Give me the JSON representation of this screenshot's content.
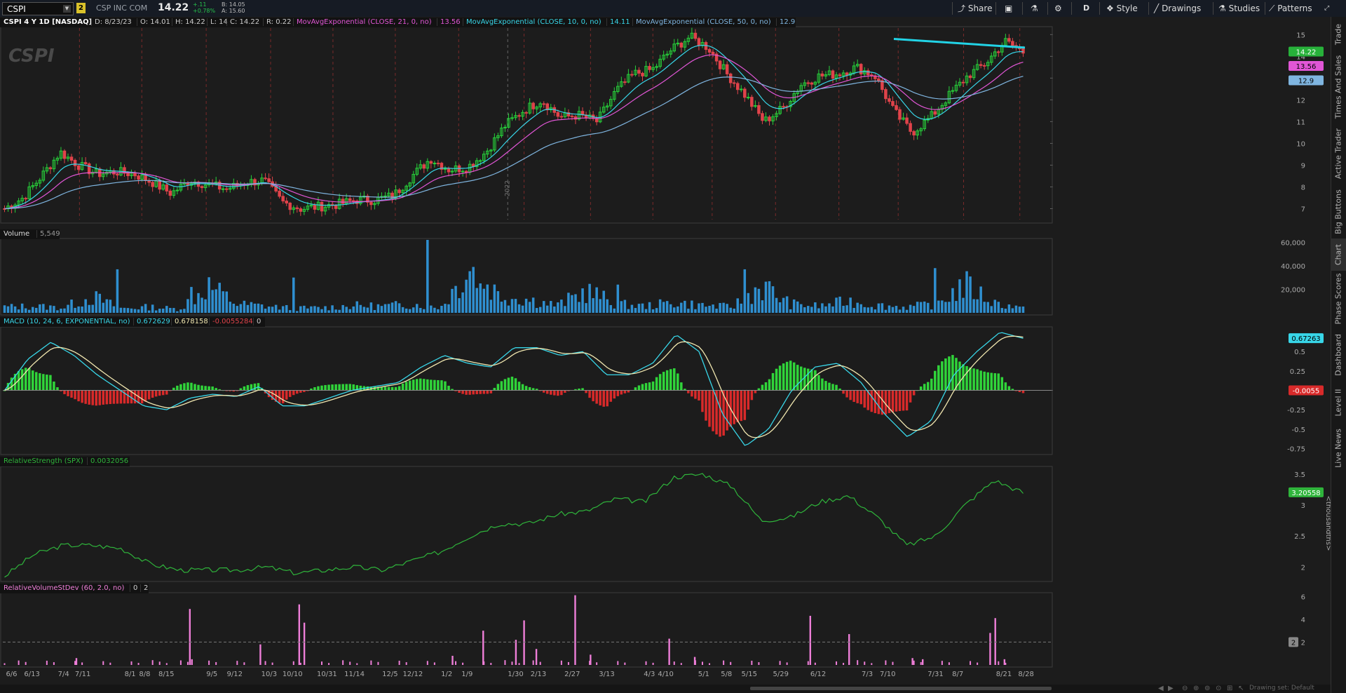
{
  "header": {
    "symbol": "CSPI",
    "link_badge": "2",
    "company": "CSP INC COM",
    "last": "14.22",
    "change_abs": "+.11",
    "change_pct": "+0.78%",
    "bid": "B: 14.05",
    "ask": "A: 15.60"
  },
  "toolbar": {
    "share": "Share",
    "aggregation": "D",
    "style": "Style",
    "drawings": "Drawings",
    "studies": "Studies",
    "patterns": "Patterns"
  },
  "sidebar_tabs": [
    "Trade",
    "Times And Sales",
    "Active Trader",
    "Big Buttons",
    "Chart",
    "Phase Scores",
    "Dashboard",
    "Level II",
    "Live News"
  ],
  "price_panel": {
    "title": "CSPI 4 Y 1D [NASDAQ]",
    "date": "D: 8/23/23",
    "open": "O: 14.01",
    "high": "H: 14.22",
    "low": "L: 14",
    "close": "C: 14.22",
    "range": "R: 0.22",
    "ma21_label": "MovAvgExponential (CLOSE, 21, 0, no)",
    "ma21_value": "13.56",
    "ma10_label": "MovAvgExponential (CLOSE, 10, 0, no)",
    "ma10_value": "14.11",
    "ma50_label": "MovAvgExponential (CLOSE, 50, 0, no)",
    "ma50_value": "12.9",
    "watermark": "CSPI",
    "price_bubble": "14.22",
    "ma21_bubble": "13.56",
    "ma50_bubble": "12.9",
    "year_marker": "2022",
    "y_ticks": [
      "15",
      "14",
      "13",
      "12",
      "11",
      "10",
      "9",
      "8",
      "7"
    ]
  },
  "volume_panel": {
    "title": "Volume",
    "value": "5,549",
    "y_ticks": [
      "60,000",
      "40,000",
      "20,000"
    ]
  },
  "macd_panel": {
    "title": "MACD (10, 24, 6, EXPONENTIAL, no)",
    "v1": "0.672629",
    "v2": "0.678158",
    "v3": "-0.0055284",
    "v4": "0",
    "bubble_macd": "0.67263",
    "bubble_diff": "-0.0055",
    "y_ticks": [
      "0.5",
      "0.25",
      "-0.25",
      "-0.5",
      "-0.75"
    ]
  },
  "rs_panel": {
    "title": "RelativeStrength (SPX)",
    "value": "0.0032056",
    "bubble": "3.20558",
    "unit_label": "<thousandths>",
    "y_ticks": [
      "3.5",
      "3",
      "2.5",
      "2"
    ]
  },
  "rvsd_panel": {
    "title": "RelativeVolumeStDev (60, 2.0, no)",
    "v1": "0",
    "v2": "2",
    "bubble": "2",
    "y_ticks": [
      "6",
      "4",
      "2"
    ]
  },
  "x_axis": [
    "6/6",
    "6/13",
    "7/4",
    "7/11",
    "8/1",
    "8/8",
    "8/15",
    "9/5",
    "9/12",
    "10/3",
    "10/10",
    "10/31",
    "11/14",
    "12/5",
    "12/12",
    "1/2",
    "1/9",
    "1/30",
    "2/13",
    "2/27",
    "3/13",
    "4/3",
    "4/10",
    "5/1",
    "5/8",
    "5/15",
    "5/29",
    "6/12",
    "7/3",
    "7/10",
    "7/31",
    "8/7",
    "8/21",
    "8/28"
  ],
  "bottom_status": "Drawing set: Default",
  "colors": {
    "up_candle": "#27d13a",
    "down_candle": "#e0434a",
    "ma10": "#38d6e8",
    "ma21": "#e156d6",
    "ma50": "#7fb5e0",
    "trendline": "#22d3e6",
    "volume": "#2f8fd0",
    "rs_line": "#2fb43b",
    "rvsd": "#ee7ed8",
    "macd_pos": "#30d43a",
    "macd_neg": "#d82a2a"
  },
  "chart_data": [
    {
      "type": "candlestick",
      "title": "CSPI 4 Y 1D [NASDAQ]",
      "x_range": [
        "6/6/22",
        "8/23/23"
      ],
      "ylim": [
        6.5,
        15.3
      ],
      "yticks": [
        7,
        8,
        9,
        10,
        11,
        12,
        13,
        14,
        15
      ],
      "series": [
        {
          "name": "CSPI",
          "close_approx": [
            7.0,
            7.5,
            8.5,
            9.6,
            9.0,
            8.6,
            8.7,
            8.6,
            8.2,
            7.7,
            8.3,
            8.1,
            7.9,
            8.2,
            8.3,
            7.3,
            7.0,
            7.1,
            7.2,
            7.4,
            7.4,
            7.6,
            8.5,
            9.3,
            8.8,
            8.9,
            9.6,
            10.8,
            11.5,
            12.0,
            11.2,
            11.3,
            11.0,
            12.4,
            13.2,
            13.4,
            14.3,
            14.9,
            14.4,
            13.2,
            12.2,
            11.0,
            11.6,
            12.7,
            13.1,
            13.2,
            13.5,
            13.1,
            11.5,
            10.5,
            11.2,
            12.2,
            13.1,
            13.7,
            14.7,
            14.2
          ]
        },
        {
          "name": "MovAvgExponential (CLOSE, 10, 0, no)",
          "last": 14.11
        },
        {
          "name": "MovAvgExponential (CLOSE, 21, 0, no)",
          "last": 13.56
        },
        {
          "name": "MovAvgExponential (CLOSE, 50, 0, no)",
          "last": 12.9
        }
      ],
      "annotations": [
        {
          "type": "trendline",
          "from": [
            "4/5/23",
            14.8
          ],
          "to": [
            "8/14/23",
            14.4
          ]
        }
      ]
    },
    {
      "type": "bar",
      "title": "Volume",
      "ylim": [
        0,
        62000
      ],
      "yticks": [
        20000,
        40000,
        60000
      ],
      "series": [
        {
          "name": "Volume",
          "values_approx": [
            8000,
            9000,
            7000,
            22000,
            6000,
            8000,
            5000,
            37000,
            12000,
            9000,
            6000,
            7000,
            10000,
            9000,
            12000,
            8000,
            62000,
            24000,
            18000,
            10000,
            30000,
            12000,
            9000,
            14000,
            10000,
            8000,
            37000,
            12000,
            9000,
            16000,
            10000,
            8000,
            12000,
            38000,
            14000,
            5549
          ]
        }
      ]
    },
    {
      "type": "line",
      "title": "MACD (10, 24, 6, EXPONENTIAL, no)",
      "ylim": [
        -0.8,
        0.8
      ],
      "yticks": [
        -0.75,
        -0.5,
        -0.25,
        0.25,
        0.5
      ],
      "series": [
        {
          "name": "MACD",
          "values_approx": [
            0.0,
            0.4,
            0.62,
            0.45,
            0.2,
            0.0,
            -0.2,
            -0.25,
            -0.1,
            -0.05,
            -0.08,
            0.05,
            -0.2,
            -0.2,
            -0.1,
            0.0,
            0.05,
            0.1,
            0.3,
            0.45,
            0.35,
            0.3,
            0.55,
            0.55,
            0.45,
            0.5,
            0.2,
            0.2,
            0.35,
            0.72,
            0.5,
            -0.3,
            -0.72,
            -0.5,
            0.0,
            0.3,
            0.35,
            0.1,
            -0.3,
            -0.6,
            -0.4,
            0.2,
            0.5,
            0.75,
            0.67
          ]
        },
        {
          "name": "Signal",
          "last": 0.678158
        },
        {
          "name": "Diff",
          "last": -0.0055284
        }
      ]
    },
    {
      "type": "line",
      "title": "RelativeStrength (SPX)",
      "ylim": [
        1.8,
        3.6
      ],
      "yticks": [
        2,
        2.5,
        3,
        3.5
      ],
      "series": [
        {
          "name": "RelativeStrength (SPX)",
          "values_approx": [
            1.85,
            2.2,
            2.35,
            2.35,
            2.3,
            2.05,
            1.95,
            1.95,
            1.95,
            2.0,
            1.9,
            1.95,
            2.0,
            1.95,
            2.1,
            2.25,
            2.5,
            2.7,
            2.7,
            2.85,
            2.9,
            3.1,
            3.05,
            3.45,
            3.5,
            3.3,
            2.75,
            2.8,
            3.05,
            3.15,
            2.8,
            2.35,
            2.5,
            3.0,
            3.4,
            3.2
          ]
        }
      ]
    },
    {
      "type": "bar",
      "title": "RelativeVolumeStDev (60, 2.0, no)",
      "ylim": [
        0,
        6.2
      ],
      "yticks": [
        2,
        4,
        6
      ],
      "series": [
        {
          "name": "RelativeVolumeStDev",
          "values_approx": [
            0.6,
            4.9,
            0.5,
            1.8,
            5.3,
            3.7,
            0.8,
            3.0,
            2.2,
            3.9,
            1.4,
            6.1,
            0.9,
            2.3,
            0.7,
            4.3,
            2.7,
            0.6,
            0.5,
            2.8,
            4.1,
            0.5
          ]
        }
      ]
    }
  ]
}
